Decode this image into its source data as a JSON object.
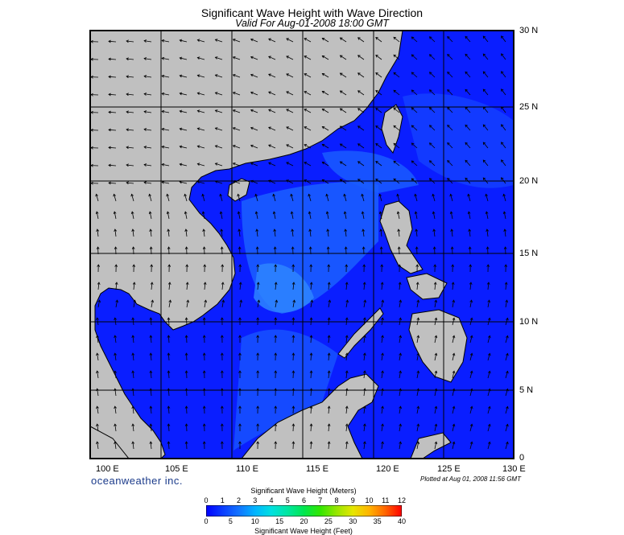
{
  "title": "Significant Wave Height with Wave Direction",
  "subtitle": "Valid For Aug-01-2008 18:00 GMT",
  "lon_labels": [
    "100 E",
    "105 E",
    "110 E",
    "115 E",
    "120 E",
    "125 E",
    "130 E"
  ],
  "lat_labels": [
    "30 N",
    "25 N",
    "20 N",
    "15 N",
    "10 N",
    "5 N",
    "0"
  ],
  "brand": "oceanweather inc.",
  "plotted": "Plotted at Aug 01, 2008 11:56 GMT",
  "colorbar": {
    "meters_label": "Significant Wave Height (Meters)",
    "feet_label": "Significant Wave Height (Feet)",
    "meters_ticks": [
      "0",
      "1",
      "2",
      "3",
      "4",
      "5",
      "6",
      "7",
      "8",
      "9",
      "10",
      "11",
      "12"
    ],
    "feet_ticks": [
      "0",
      "5",
      "10",
      "15",
      "20",
      "25",
      "30",
      "35",
      "40"
    ],
    "colors": [
      "#0000ff",
      "#0a3cff",
      "#1273ff",
      "#00b4ff",
      "#00e0e0",
      "#00e6a0",
      "#00e650",
      "#32e600",
      "#96e600",
      "#e6e600",
      "#ffb400",
      "#ff6400",
      "#ff0000"
    ]
  },
  "map_colors": {
    "land": "#c0c0c0",
    "sea_low": "#0a1eff",
    "sea_mid": "#1a5cff",
    "sea_high": "#2e85ff",
    "grid": "#000000"
  }
}
